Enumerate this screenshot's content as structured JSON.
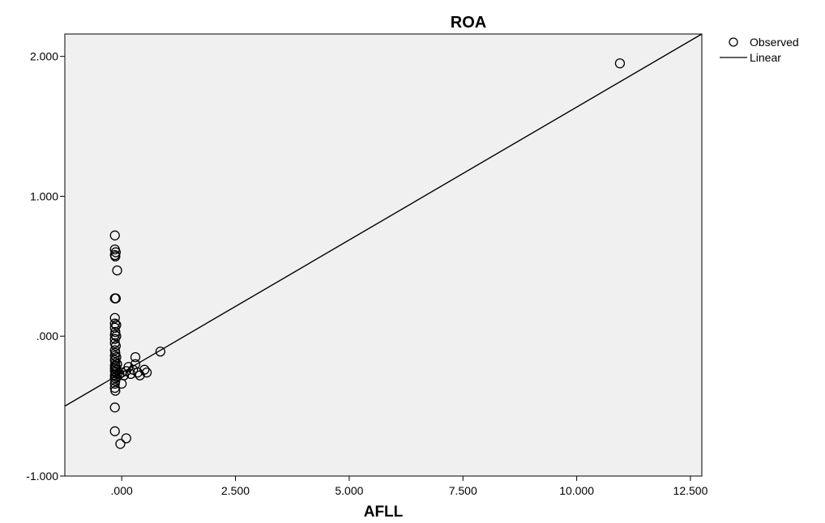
{
  "chart_data": {
    "type": "scatter",
    "title": "ROA",
    "xlabel": "AFLL",
    "ylabel": "",
    "xlim": [
      -1.25,
      12.75
    ],
    "ylim": [
      -1.0,
      2.16
    ],
    "x_ticks": [
      0,
      2.5,
      5,
      7.5,
      10,
      12.5
    ],
    "x_tick_labels": [
      ".000",
      "2.500",
      "5.000",
      "7.500",
      "10.000",
      "12.500"
    ],
    "y_ticks": [
      -1,
      0,
      1,
      2
    ],
    "y_tick_labels": [
      "-1.000",
      ".000",
      "1.000",
      "2.000"
    ],
    "grid": false,
    "legend": {
      "position": "top-right",
      "entries": [
        "Observed",
        "Linear"
      ]
    },
    "series": [
      {
        "name": "Observed",
        "kind": "points",
        "points": [
          [
            -0.15,
            0.72
          ],
          [
            -0.15,
            0.62
          ],
          [
            -0.13,
            0.6
          ],
          [
            -0.15,
            0.58
          ],
          [
            -0.14,
            0.57
          ],
          [
            -0.1,
            0.47
          ],
          [
            -0.15,
            0.27
          ],
          [
            -0.13,
            0.27
          ],
          [
            -0.15,
            0.13
          ],
          [
            -0.15,
            0.09
          ],
          [
            -0.12,
            0.08
          ],
          [
            -0.15,
            0.06
          ],
          [
            -0.14,
            0.03
          ],
          [
            -0.15,
            0.01
          ],
          [
            -0.12,
            0.0
          ],
          [
            -0.15,
            -0.02
          ],
          [
            -0.15,
            -0.05
          ],
          [
            -0.13,
            -0.07
          ],
          [
            -0.15,
            -0.1
          ],
          [
            -0.14,
            -0.12
          ],
          [
            -0.15,
            -0.14
          ],
          [
            -0.12,
            -0.15
          ],
          [
            -0.15,
            -0.17
          ],
          [
            -0.14,
            -0.19
          ],
          [
            -0.1,
            -0.2
          ],
          [
            -0.15,
            -0.21
          ],
          [
            -0.13,
            -0.22
          ],
          [
            -0.15,
            -0.23
          ],
          [
            -0.12,
            -0.24
          ],
          [
            -0.15,
            -0.25
          ],
          [
            -0.14,
            -0.26
          ],
          [
            -0.1,
            -0.27
          ],
          [
            -0.15,
            -0.28
          ],
          [
            -0.13,
            -0.29
          ],
          [
            -0.15,
            -0.3
          ],
          [
            -0.14,
            -0.32
          ],
          [
            -0.15,
            -0.34
          ],
          [
            -0.15,
            -0.37
          ],
          [
            -0.14,
            -0.39
          ],
          [
            -0.15,
            -0.51
          ],
          [
            -0.15,
            -0.68
          ],
          [
            -0.03,
            -0.77
          ],
          [
            0.1,
            -0.73
          ],
          [
            -0.05,
            -0.27
          ],
          [
            0.0,
            -0.26
          ],
          [
            0.05,
            -0.28
          ],
          [
            0.1,
            -0.25
          ],
          [
            0.15,
            -0.22
          ],
          [
            0.2,
            -0.27
          ],
          [
            0.25,
            -0.24
          ],
          [
            0.3,
            -0.2
          ],
          [
            0.35,
            -0.26
          ],
          [
            0.4,
            -0.28
          ],
          [
            0.0,
            -0.34
          ],
          [
            0.3,
            -0.15
          ],
          [
            0.5,
            -0.24
          ],
          [
            0.55,
            -0.26
          ],
          [
            0.85,
            -0.11
          ],
          [
            10.95,
            1.95
          ]
        ]
      },
      {
        "name": "Linear",
        "kind": "line",
        "line": [
          [
            -1.25,
            -0.5
          ],
          [
            12.75,
            2.16
          ]
        ]
      }
    ]
  }
}
